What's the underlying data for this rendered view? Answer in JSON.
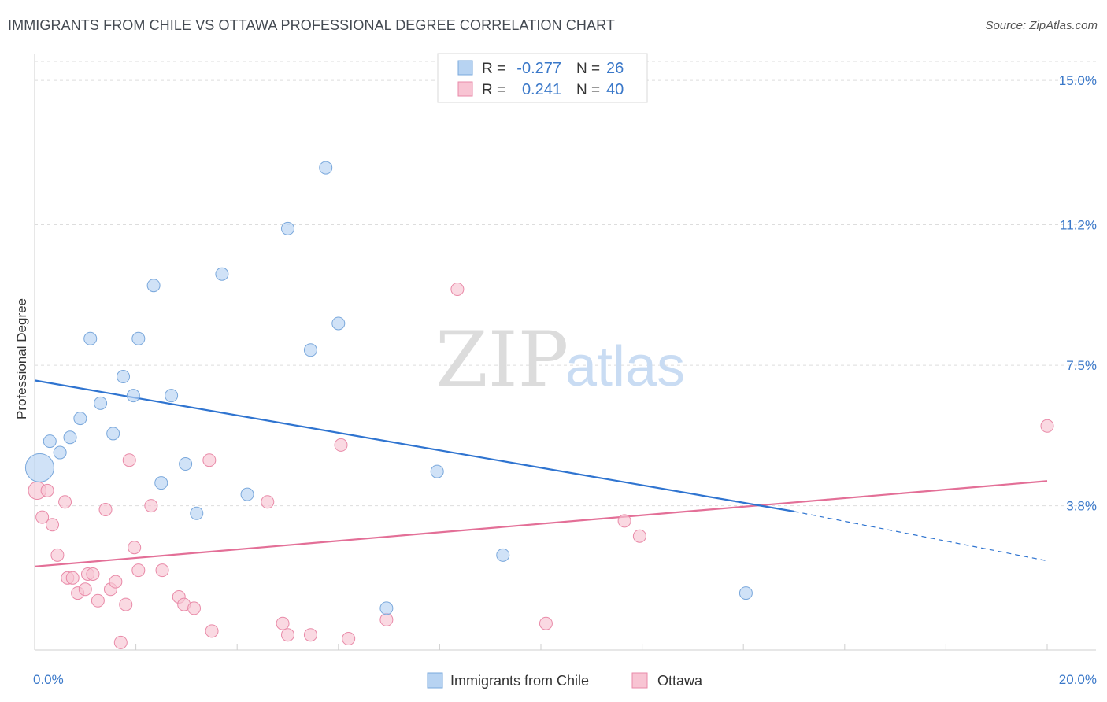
{
  "title": "IMMIGRANTS FROM CHILE VS OTTAWA PROFESSIONAL DEGREE CORRELATION CHART",
  "source": "Source: ZipAtlas.com",
  "watermark": {
    "part1": "ZIP",
    "part2": "atlas"
  },
  "colors": {
    "blue_fill": "#b7d3f2",
    "blue_stroke": "#7aa8dc",
    "blue_line": "#2f74d0",
    "pink_fill": "#f8c4d3",
    "pink_stroke": "#e98aa8",
    "pink_line": "#e36f97",
    "axis_text": "#3a78c9",
    "grid": "#dddddd"
  },
  "legend_top": {
    "rows": [
      {
        "r_label": "R =",
        "r_value": "-0.277",
        "n_label": "N =",
        "n_value": "26"
      },
      {
        "r_label": "R =",
        "r_value": " 0.241",
        "n_label": "N =",
        "n_value": "40"
      }
    ]
  },
  "legend_bottom": [
    "Immigrants from Chile",
    "Ottawa"
  ],
  "chart_data": {
    "type": "scatter",
    "title": "IMMIGRANTS FROM CHILE VS OTTAWA PROFESSIONAL DEGREE CORRELATION CHART",
    "ylabel": "Professional Degree",
    "xlim": [
      0,
      20
    ],
    "ylim": [
      0,
      15.5
    ],
    "x_tick_labels": [
      "0.0%",
      "20.0%"
    ],
    "y_ticks": [
      3.8,
      7.5,
      11.2,
      15.0
    ],
    "y_tick_labels": [
      "3.8%",
      "7.5%",
      "11.2%",
      "15.0%"
    ],
    "grid": "horizontal dashed",
    "series": [
      {
        "name": "Immigrants from Chile",
        "R": -0.277,
        "N": 26,
        "points": [
          [
            0.1,
            4.8,
            3
          ],
          [
            0.3,
            5.5,
            1
          ],
          [
            0.5,
            5.2,
            1
          ],
          [
            0.7,
            5.6,
            1
          ],
          [
            0.9,
            6.1,
            1
          ],
          [
            1.1,
            8.2,
            1
          ],
          [
            1.3,
            6.5,
            1
          ],
          [
            1.55,
            5.7,
            1
          ],
          [
            1.75,
            7.2,
            1
          ],
          [
            1.95,
            6.7,
            1
          ],
          [
            2.05,
            8.2,
            1
          ],
          [
            2.35,
            9.6,
            1
          ],
          [
            2.5,
            4.4,
            1
          ],
          [
            2.7,
            6.7,
            1
          ],
          [
            2.98,
            4.9,
            1
          ],
          [
            3.2,
            3.6,
            1
          ],
          [
            3.7,
            9.9,
            1
          ],
          [
            4.2,
            4.1,
            1
          ],
          [
            5.0,
            11.1,
            1
          ],
          [
            5.45,
            7.9,
            1
          ],
          [
            5.75,
            12.7,
            1
          ],
          [
            6.0,
            8.6,
            1
          ],
          [
            6.95,
            1.1,
            1
          ],
          [
            7.95,
            4.7,
            1
          ],
          [
            9.25,
            2.5,
            1
          ],
          [
            14.05,
            1.5,
            1
          ]
        ],
        "trend": {
          "x0": 0,
          "y0": 7.1,
          "x1": 15.0,
          "y1": 3.65,
          "dashed_to_x": 20,
          "dashed_to_y": 2.35
        }
      },
      {
        "name": "Ottawa",
        "R": 0.241,
        "N": 40,
        "points": [
          [
            0.05,
            4.2,
            1.4
          ],
          [
            0.15,
            3.5,
            1
          ],
          [
            0.25,
            4.2,
            1
          ],
          [
            0.35,
            3.3,
            1
          ],
          [
            0.45,
            2.5,
            1
          ],
          [
            0.6,
            3.9,
            1
          ],
          [
            0.65,
            1.9,
            1
          ],
          [
            0.75,
            1.9,
            1
          ],
          [
            0.85,
            1.5,
            1
          ],
          [
            1.0,
            1.6,
            1
          ],
          [
            1.05,
            2.0,
            1
          ],
          [
            1.15,
            2.0,
            1
          ],
          [
            1.25,
            1.3,
            1
          ],
          [
            1.4,
            3.7,
            1
          ],
          [
            1.5,
            1.6,
            1
          ],
          [
            1.6,
            1.8,
            1
          ],
          [
            1.7,
            0.2,
            1
          ],
          [
            1.8,
            1.2,
            1
          ],
          [
            1.87,
            5.0,
            1
          ],
          [
            1.97,
            2.7,
            1
          ],
          [
            2.05,
            2.1,
            1
          ],
          [
            2.3,
            3.8,
            1
          ],
          [
            2.52,
            2.1,
            1
          ],
          [
            2.85,
            1.4,
            1
          ],
          [
            2.95,
            1.2,
            1
          ],
          [
            3.15,
            1.1,
            1
          ],
          [
            3.45,
            5.0,
            1
          ],
          [
            3.5,
            0.5,
            1
          ],
          [
            4.6,
            3.9,
            1
          ],
          [
            4.9,
            0.7,
            1
          ],
          [
            5.0,
            0.4,
            1
          ],
          [
            5.45,
            0.4,
            1
          ],
          [
            6.05,
            5.4,
            1
          ],
          [
            6.2,
            0.3,
            1
          ],
          [
            6.95,
            0.8,
            1
          ],
          [
            8.35,
            9.5,
            1
          ],
          [
            10.1,
            0.7,
            1
          ],
          [
            11.65,
            3.4,
            1
          ],
          [
            11.95,
            3.0,
            1
          ],
          [
            20.0,
            5.9,
            1
          ]
        ],
        "trend": {
          "x0": 0,
          "y0": 2.2,
          "x1": 20,
          "y1": 4.45
        }
      }
    ]
  }
}
